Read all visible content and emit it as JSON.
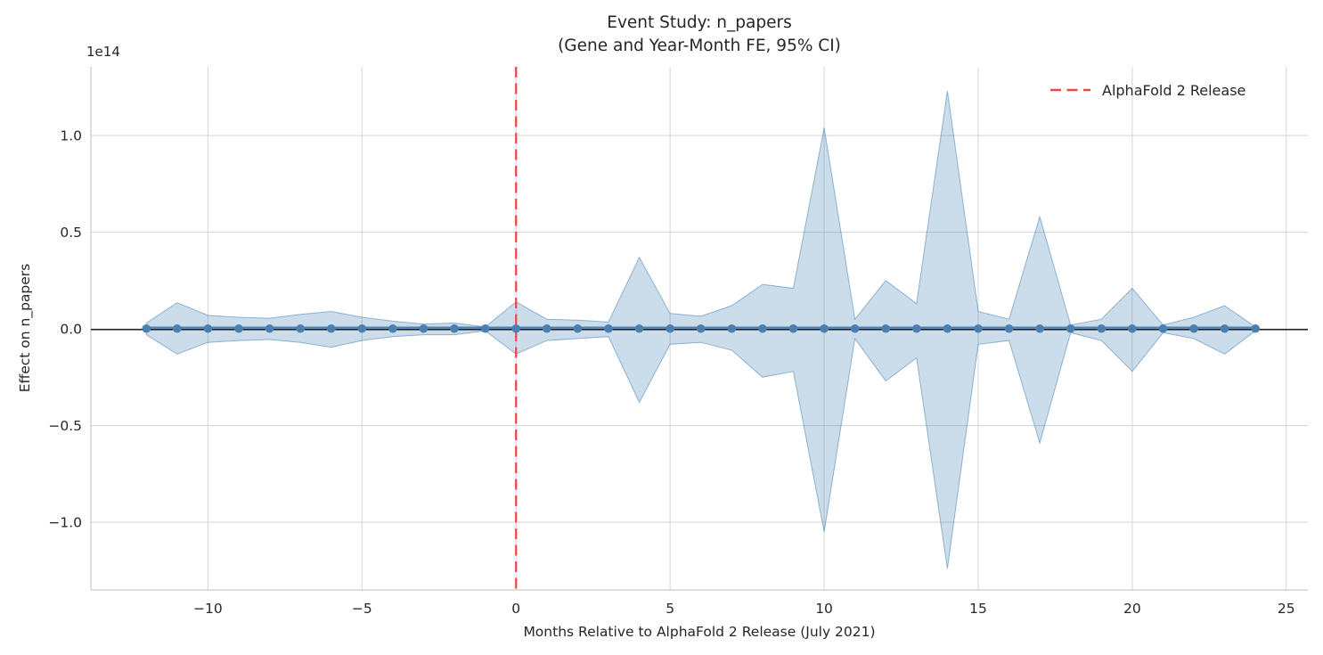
{
  "figure": {
    "title": "Event Study: n_papers",
    "subtitle": "(Gene and Year-Month FE, 95% CI)",
    "xlabel": "Months Relative to AlphaFold 2 Release (July 2021)",
    "ylabel": "Effect on n_papers",
    "y_offset_text": "1e14",
    "legend_label": "AlphaFold 2 Release"
  },
  "colors": {
    "text": "#262626",
    "grid": "#d8d8d8",
    "spine": "#cccccc",
    "ci_fill": "rgba(70,130,180,0.28)",
    "ci_edge": "rgba(70,130,180,0.55)",
    "point": "#4a7fb2",
    "coef_line": "#4a7fb2",
    "zero_line": "#0a0a0a",
    "event_line": "#f64747"
  },
  "chart_data": {
    "type": "line",
    "title": "Event Study: n_papers (Gene and Year-Month FE, 95% CI)",
    "xlabel": "Months Relative to AlphaFold 2 Release (July 2021)",
    "ylabel": "Effect on n_papers",
    "y_scale_factor": "1e14",
    "grid": true,
    "legend_position": "upper right",
    "xlim": [
      -13.8,
      25.7
    ],
    "ylim_1e14": [
      -1.35,
      1.355
    ],
    "xtick_values": [
      -10,
      -5,
      0,
      5,
      10,
      15,
      20,
      25
    ],
    "xtick_labels": [
      "−10",
      "−5",
      "0",
      "5",
      "10",
      "15",
      "20",
      "25"
    ],
    "ytick_values_1e14": [
      1.0,
      0.5,
      0.0,
      -0.5,
      -1.0
    ],
    "ytick_labels": [
      "1.0",
      "0.5",
      "0.0",
      "−0.5",
      "−1.0"
    ],
    "event_line": {
      "x": 0,
      "label": "AlphaFold 2 Release",
      "style": "dashed"
    },
    "x": [
      -12,
      -11,
      -10,
      -9,
      -8,
      -7,
      -6,
      -5,
      -4,
      -3,
      -2,
      -1,
      0,
      1,
      2,
      3,
      4,
      5,
      6,
      7,
      8,
      9,
      10,
      11,
      12,
      13,
      14,
      15,
      16,
      17,
      18,
      19,
      20,
      21,
      22,
      23,
      24
    ],
    "series": [
      {
        "name": "coefficient",
        "values_1e14": [
          0,
          0,
          0,
          0,
          0,
          0,
          0,
          0,
          0,
          0,
          0,
          0,
          0,
          0,
          0,
          0,
          0,
          0,
          0,
          0,
          0,
          0,
          0,
          0,
          0,
          0,
          0,
          0,
          0,
          0,
          0,
          0,
          0,
          0,
          0,
          0,
          0
        ]
      }
    ],
    "ci95_upper_1e14": [
      0.03,
      0.135,
      0.07,
      0.06,
      0.055,
      0.075,
      0.09,
      0.06,
      0.04,
      0.025,
      0.03,
      0.01,
      0.14,
      0.05,
      0.045,
      0.035,
      0.37,
      0.08,
      0.065,
      0.12,
      0.23,
      0.21,
      1.04,
      0.05,
      0.25,
      0.13,
      1.23,
      0.09,
      0.05,
      0.58,
      0.02,
      0.05,
      0.21,
      0.02,
      0.06,
      0.12,
      0.01
    ],
    "ci95_lower_1e14": [
      -0.03,
      -0.13,
      -0.07,
      -0.06,
      -0.055,
      -0.07,
      -0.095,
      -0.06,
      -0.04,
      -0.03,
      -0.03,
      -0.01,
      -0.13,
      -0.06,
      -0.05,
      -0.04,
      -0.38,
      -0.08,
      -0.07,
      -0.11,
      -0.25,
      -0.22,
      -1.05,
      -0.05,
      -0.27,
      -0.15,
      -1.24,
      -0.08,
      -0.06,
      -0.59,
      -0.02,
      -0.06,
      -0.22,
      -0.02,
      -0.05,
      -0.13,
      -0.01
    ]
  }
}
